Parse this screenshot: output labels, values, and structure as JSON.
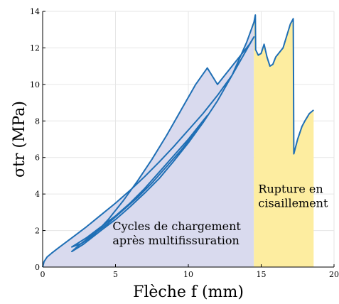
{
  "chart_data": {
    "type": "line",
    "xlabel": "Flèche f (mm)",
    "ylabel": "σtr (MPa)",
    "xlim": [
      0,
      20
    ],
    "ylim": [
      0,
      14
    ],
    "xticks": [
      0,
      5,
      10,
      15,
      20
    ],
    "yticks": [
      0,
      2,
      4,
      6,
      8,
      10,
      12,
      14
    ],
    "grid": true,
    "line_color": "#1f6fb5",
    "regions": [
      {
        "label": "Cycles de chargement après multifissuration",
        "x": [
          0,
          14.5
        ],
        "color": "#d9daee"
      },
      {
        "label": "Rupture en cisaillement",
        "x": [
          14.5,
          18.6
        ],
        "color": "#fdeda0"
      }
    ],
    "annotations": [
      {
        "lines": [
          "Cycles de chargement",
          "après multifissuration"
        ],
        "x": 4.8,
        "y": 1.55
      },
      {
        "lines": [
          "Rupture en",
          "cisaillement"
        ],
        "x": 14.8,
        "y": 3.6
      }
    ],
    "series": [
      {
        "values": [
          [
            0,
            0
          ],
          [
            0.1,
            0.3
          ],
          [
            0.3,
            0.55
          ],
          [
            0.6,
            0.75
          ],
          [
            1.0,
            1.0
          ],
          [
            1.5,
            1.3
          ],
          [
            2.0,
            1.6
          ],
          [
            3.0,
            2.2
          ],
          [
            4.0,
            2.85
          ],
          [
            5.0,
            3.5
          ],
          [
            6.0,
            4.2
          ],
          [
            7.0,
            4.95
          ],
          [
            8.0,
            5.75
          ],
          [
            9.0,
            6.6
          ],
          [
            10.0,
            7.5
          ],
          [
            11.0,
            8.4
          ],
          [
            12.0,
            9.4
          ],
          [
            13.0,
            10.5
          ],
          [
            14.0,
            11.9
          ],
          [
            14.5,
            12.6
          ],
          [
            14.2,
            12.2
          ],
          [
            13.0,
            11.0
          ],
          [
            12.0,
            10.0
          ],
          [
            11.3,
            10.9
          ],
          [
            10.5,
            10.0
          ],
          [
            9.5,
            8.6
          ],
          [
            8.5,
            7.2
          ],
          [
            7.5,
            5.9
          ],
          [
            6.5,
            4.7
          ],
          [
            5.5,
            3.6
          ],
          [
            4.5,
            2.6
          ],
          [
            3.5,
            1.75
          ],
          [
            2.7,
            1.3
          ],
          [
            2.0,
            1.1
          ],
          [
            3.0,
            1.6
          ],
          [
            4.0,
            2.2
          ],
          [
            5.0,
            2.8
          ],
          [
            6.0,
            3.5
          ],
          [
            7.0,
            4.3
          ],
          [
            8.0,
            5.2
          ],
          [
            9.0,
            6.1
          ],
          [
            10.0,
            7.0
          ],
          [
            11.0,
            8.0
          ],
          [
            11.3,
            8.3
          ],
          [
            10.5,
            7.4
          ],
          [
            9.5,
            6.4
          ],
          [
            8.5,
            5.5
          ],
          [
            7.5,
            4.6
          ],
          [
            6.5,
            3.8
          ],
          [
            5.5,
            3.1
          ],
          [
            4.5,
            2.4
          ],
          [
            3.5,
            1.8
          ],
          [
            2.5,
            1.2
          ],
          [
            2.0,
            0.85
          ],
          [
            2.8,
            1.25
          ],
          [
            4.0,
            2.0
          ],
          [
            5.0,
            2.6
          ],
          [
            6.0,
            3.3
          ],
          [
            7.0,
            4.05
          ],
          [
            8.0,
            4.85
          ],
          [
            9.0,
            5.8
          ],
          [
            10.0,
            6.8
          ],
          [
            11.0,
            7.9
          ],
          [
            12.0,
            9.1
          ],
          [
            13.0,
            10.5
          ],
          [
            14.0,
            12.3
          ],
          [
            14.5,
            13.4
          ],
          [
            14.6,
            13.8
          ],
          [
            14.62,
            11.9
          ],
          [
            14.8,
            11.6
          ],
          [
            15.0,
            11.7
          ],
          [
            15.2,
            12.2
          ],
          [
            15.4,
            11.5
          ],
          [
            15.6,
            11.0
          ],
          [
            15.8,
            11.1
          ],
          [
            16.0,
            11.5
          ],
          [
            16.5,
            12.0
          ],
          [
            17.0,
            13.3
          ],
          [
            17.2,
            13.6
          ],
          [
            17.22,
            10.5
          ],
          [
            17.24,
            6.2
          ],
          [
            17.5,
            7.0
          ],
          [
            17.8,
            7.7
          ],
          [
            18.0,
            8.0
          ],
          [
            18.3,
            8.4
          ],
          [
            18.6,
            8.6
          ]
        ]
      }
    ]
  }
}
